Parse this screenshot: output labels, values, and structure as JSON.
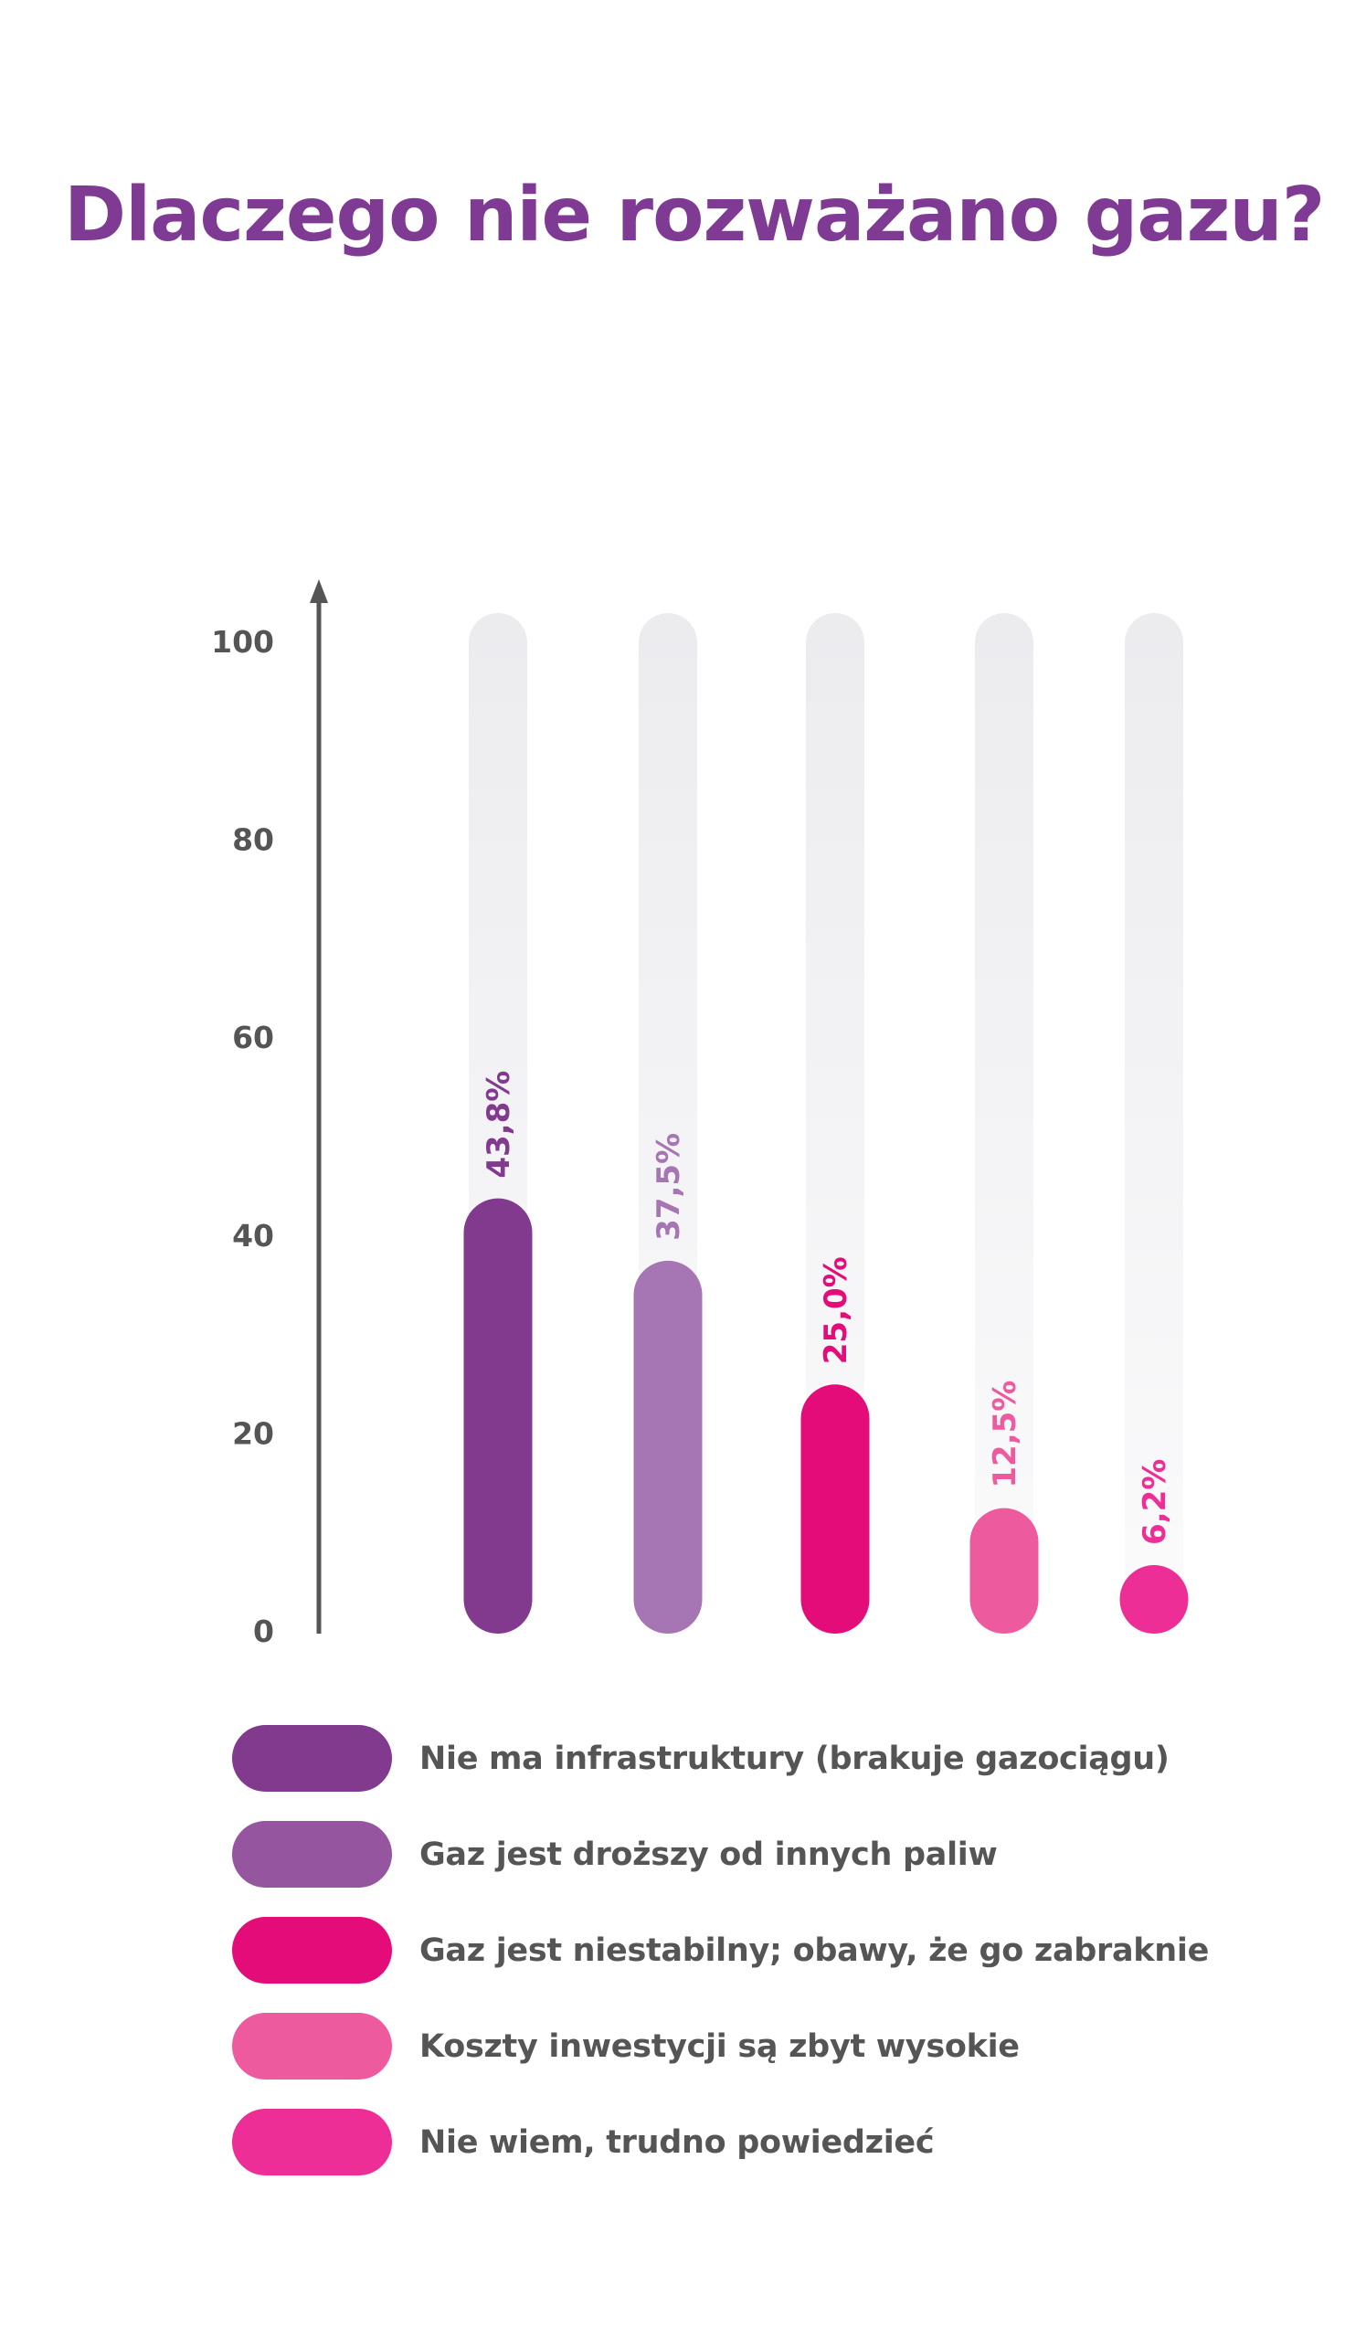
{
  "chart_data": {
    "type": "bar",
    "title": "Dlaczego nie rozważano gazu?",
    "categories": [
      "Nie ma infrastruktury (brakuje gazociągu)",
      "Gaz jest droższy od innych paliw",
      "Gaz jest niestabilny; obawy, że go zabraknie",
      "Koszty inwestycji są zbyt wysokie",
      "Nie wiem, trudno powiedzieć"
    ],
    "values": [
      43.8,
      37.5,
      25.0,
      12.5,
      6.2
    ],
    "data_labels": [
      "43,8%",
      "37,5%",
      "25,0%",
      "12,5%",
      "6,2%"
    ],
    "bar_colors": [
      "#823a8f",
      "#a675b3",
      "#e30c79",
      "#ee5a9e",
      "#ec2e96"
    ],
    "label_colors": [
      "#823a8f",
      "#a675b3",
      "#e30c79",
      "#ee5a9e",
      "#ec2e96"
    ],
    "legend_colors": [
      "#823a8f",
      "#96569f",
      "#e30c79",
      "#ee5a9e",
      "#ec2e96"
    ],
    "title_color": "#7f3a94",
    "ylim": [
      0,
      100
    ],
    "yticks": [
      0,
      20,
      40,
      60,
      80,
      100
    ],
    "xlabel": "",
    "ylabel": "",
    "grid": false,
    "legend_position": "bottom"
  }
}
